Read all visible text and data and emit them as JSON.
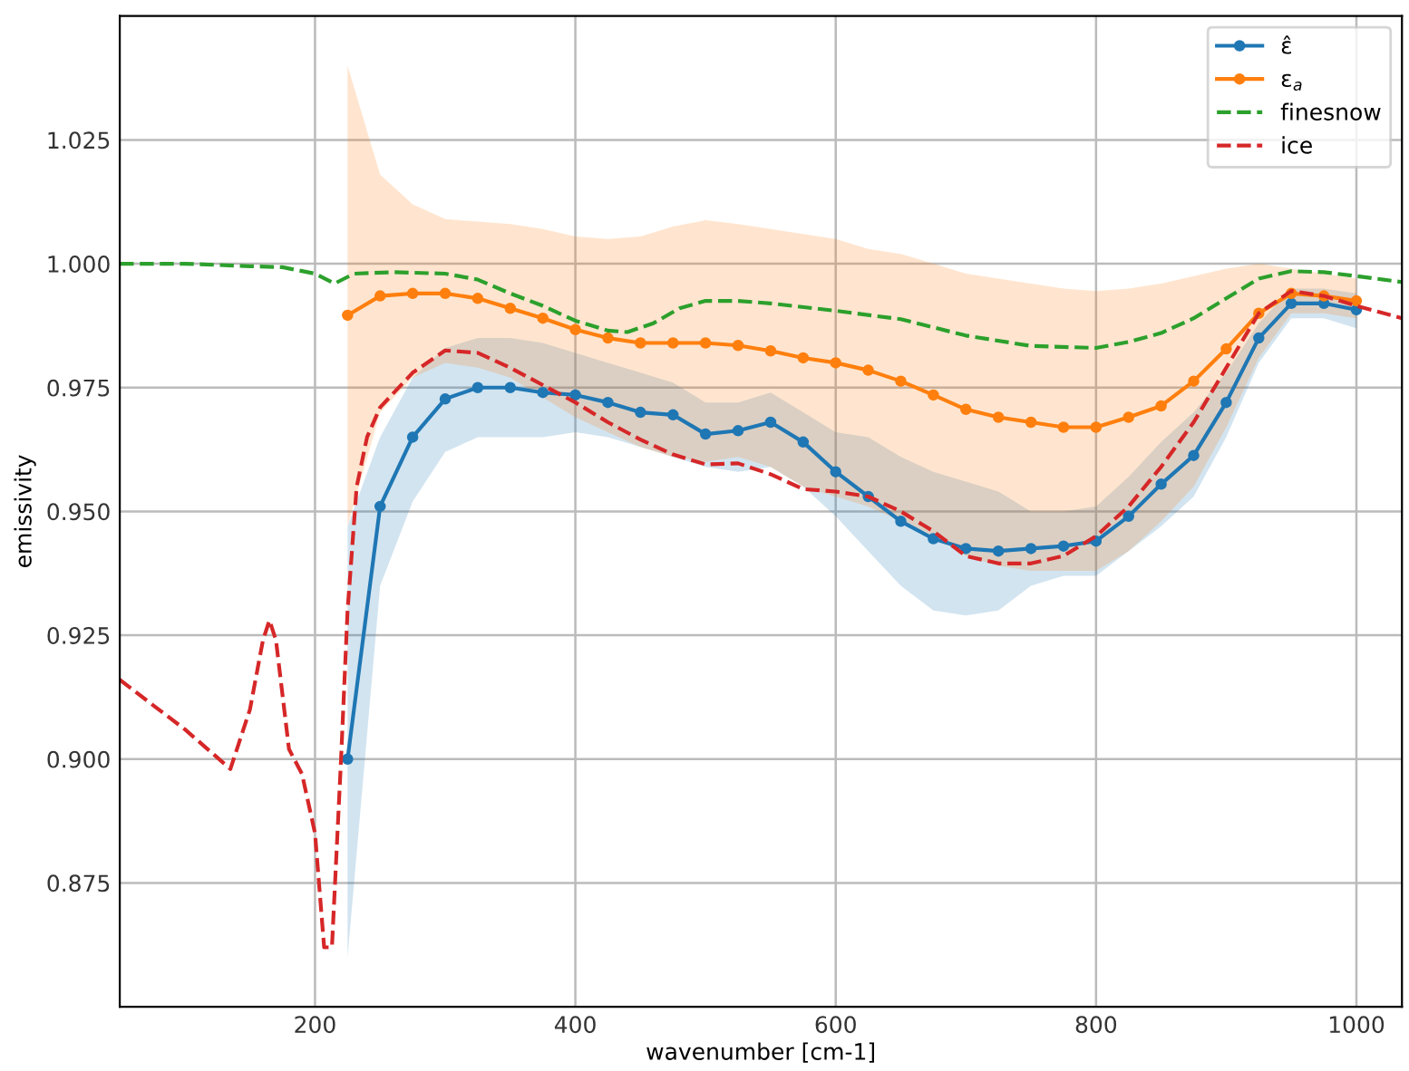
{
  "chart_data": {
    "type": "line",
    "xlabel": "wavenumber [cm-1]",
    "ylabel": "emissivity",
    "xlim": [
      50,
      1035
    ],
    "ylim": [
      0.85,
      1.05
    ],
    "xticks": [
      200,
      400,
      600,
      800,
      1000
    ],
    "yticks": [
      {
        "value": 0.875,
        "label": "0.875"
      },
      {
        "value": 0.9,
        "label": "0.900"
      },
      {
        "value": 0.925,
        "label": "0.925"
      },
      {
        "value": 0.95,
        "label": "0.950"
      },
      {
        "value": 0.975,
        "label": "0.975"
      },
      {
        "value": 1.0,
        "label": "1.000"
      },
      {
        "value": 1.025,
        "label": "1.025"
      }
    ],
    "grid": true,
    "legend": "top right",
    "series": [
      {
        "name": "ε̂",
        "color": "#1f77b4",
        "marker": "circle",
        "line_style": "solid",
        "x": [
          225,
          250,
          275,
          300,
          325,
          350,
          375,
          400,
          425,
          450,
          475,
          500,
          525,
          550,
          575,
          600,
          625,
          650,
          675,
          700,
          725,
          750,
          775,
          800,
          825,
          850,
          875,
          900,
          925,
          950,
          975,
          1000
        ],
        "values": [
          0.9,
          0.951,
          0.965,
          0.9727,
          0.975,
          0.975,
          0.974,
          0.9735,
          0.972,
          0.97,
          0.9695,
          0.9656,
          0.9663,
          0.968,
          0.964,
          0.958,
          0.953,
          0.948,
          0.9445,
          0.9425,
          0.942,
          0.9425,
          0.943,
          0.944,
          0.949,
          0.9555,
          0.9613,
          0.972,
          0.985,
          0.992,
          0.992,
          0.9907
        ],
        "lower": [
          0.86,
          0.935,
          0.952,
          0.962,
          0.965,
          0.965,
          0.965,
          0.966,
          0.965,
          0.963,
          0.961,
          0.959,
          0.958,
          0.959,
          0.955,
          0.949,
          0.942,
          0.935,
          0.93,
          0.929,
          0.93,
          0.935,
          0.937,
          0.937,
          0.942,
          0.947,
          0.953,
          0.965,
          0.98,
          0.989,
          0.989,
          0.987
        ],
        "upper": [
          0.947,
          0.965,
          0.977,
          0.983,
          0.985,
          0.985,
          0.984,
          0.982,
          0.98,
          0.978,
          0.976,
          0.972,
          0.972,
          0.974,
          0.97,
          0.966,
          0.965,
          0.961,
          0.958,
          0.956,
          0.954,
          0.95,
          0.95,
          0.951,
          0.957,
          0.964,
          0.97,
          0.978,
          0.988,
          0.995,
          0.995,
          0.994
        ]
      },
      {
        "name": "ε$_{a}$",
        "color": "#ff7f0e",
        "marker": "circle",
        "line_style": "solid",
        "x": [
          225,
          250,
          275,
          300,
          325,
          350,
          375,
          400,
          425,
          450,
          475,
          500,
          525,
          550,
          575,
          600,
          625,
          650,
          675,
          700,
          725,
          750,
          775,
          800,
          825,
          850,
          875,
          900,
          925,
          950,
          975,
          1000
        ],
        "values": [
          0.9896,
          0.9935,
          0.994,
          0.994,
          0.993,
          0.991,
          0.989,
          0.9867,
          0.985,
          0.984,
          0.984,
          0.984,
          0.9835,
          0.9824,
          0.981,
          0.98,
          0.9785,
          0.9763,
          0.9735,
          0.9706,
          0.969,
          0.968,
          0.967,
          0.967,
          0.969,
          0.9713,
          0.9763,
          0.9828,
          0.99,
          0.994,
          0.9935,
          0.9925
        ],
        "lower": [
          0.947,
          0.97,
          0.977,
          0.98,
          0.979,
          0.977,
          0.973,
          0.969,
          0.966,
          0.963,
          0.961,
          0.96,
          0.961,
          0.959,
          0.955,
          0.953,
          0.951,
          0.948,
          0.945,
          0.941,
          0.939,
          0.938,
          0.938,
          0.938,
          0.942,
          0.948,
          0.955,
          0.967,
          0.981,
          0.99,
          0.99,
          0.989
        ],
        "upper": [
          1.04,
          1.018,
          1.012,
          1.009,
          1.0085,
          1.008,
          1.007,
          1.0055,
          1.005,
          1.0055,
          1.0075,
          1.0088,
          1.008,
          1.007,
          1.006,
          1.005,
          1.003,
          1.002,
          1.0,
          0.998,
          0.997,
          0.996,
          0.995,
          0.9945,
          0.995,
          0.996,
          0.9975,
          0.999,
          1.0,
          0.999,
          0.998,
          0.997
        ]
      },
      {
        "name": "finesnow",
        "color": "#2ca02c",
        "marker": "none",
        "line_style": "dashed",
        "x": [
          50,
          100,
          150,
          175,
          200,
          215,
          230,
          260,
          300,
          325,
          350,
          375,
          400,
          425,
          440,
          460,
          480,
          500,
          525,
          550,
          600,
          650,
          700,
          750,
          800,
          825,
          850,
          875,
          900,
          925,
          950,
          975,
          1000,
          1035
        ],
        "values": [
          1.0,
          1.0,
          0.9995,
          0.9993,
          0.998,
          0.996,
          0.998,
          0.9983,
          0.998,
          0.9968,
          0.994,
          0.9915,
          0.9885,
          0.9865,
          0.9862,
          0.988,
          0.991,
          0.9925,
          0.9925,
          0.992,
          0.9905,
          0.9888,
          0.9855,
          0.9834,
          0.983,
          0.9842,
          0.986,
          0.989,
          0.993,
          0.997,
          0.9985,
          0.9983,
          0.9975,
          0.9963
        ]
      },
      {
        "name": "ice",
        "color": "#d62728",
        "marker": "none",
        "line_style": "dashed",
        "x": [
          50,
          100,
          135,
          150,
          160,
          165,
          170,
          180,
          190,
          200,
          207,
          213,
          220,
          225,
          232,
          240,
          250,
          275,
          300,
          325,
          350,
          375,
          400,
          425,
          450,
          475,
          500,
          525,
          550,
          575,
          600,
          625,
          650,
          675,
          700,
          725,
          750,
          775,
          800,
          825,
          850,
          875,
          900,
          925,
          950,
          975,
          1000,
          1035
        ],
        "values": [
          0.916,
          0.906,
          0.898,
          0.91,
          0.924,
          0.928,
          0.924,
          0.902,
          0.897,
          0.885,
          0.862,
          0.862,
          0.9,
          0.93,
          0.955,
          0.965,
          0.971,
          0.978,
          0.9825,
          0.982,
          0.979,
          0.9755,
          0.972,
          0.968,
          0.9645,
          0.9615,
          0.9595,
          0.9597,
          0.9575,
          0.9545,
          0.954,
          0.953,
          0.95,
          0.946,
          0.941,
          0.9395,
          0.9395,
          0.941,
          0.945,
          0.951,
          0.959,
          0.968,
          0.979,
          0.99,
          0.9945,
          0.9935,
          0.9915,
          0.989
        ]
      }
    ]
  }
}
